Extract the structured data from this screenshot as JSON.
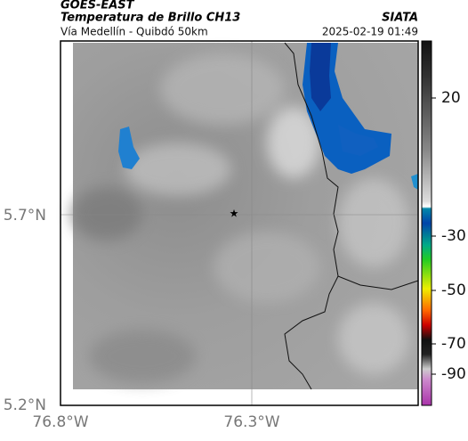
{
  "header": {
    "title": "GOES-EAST",
    "subtitle": "Temperatura de Brillo CH13",
    "location": "Vía Medellín - Quibdó 50km",
    "source": "SIATA",
    "datetime": "2025-02-19 01:49"
  },
  "axes": {
    "lat_labels": [
      "5.7°N",
      "5.2°N"
    ],
    "lon_labels": [
      "76.8°W",
      "76.3°W"
    ]
  },
  "colorbar": {
    "labels": [
      "20",
      "-30",
      "-50",
      "-70",
      "-90"
    ]
  }
}
